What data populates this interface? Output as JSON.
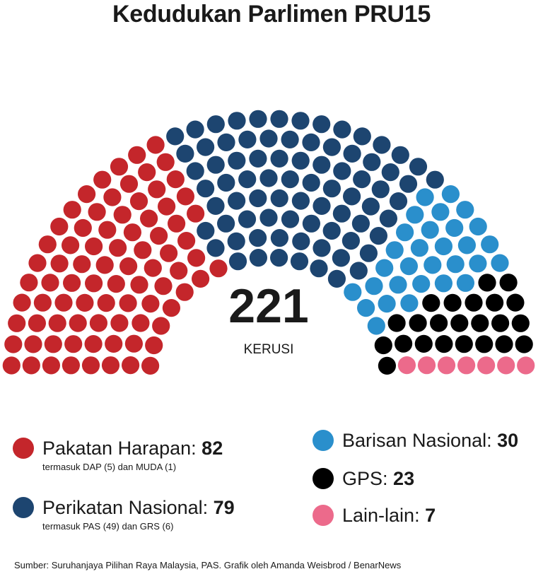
{
  "title": "Kedudukan Parlimen PRU15",
  "chart_data": {
    "type": "parliament",
    "total_seats": 221,
    "total_number": "221",
    "total_label": "KERUSI",
    "parties": [
      {
        "name": "Pakatan Harapan",
        "seats": 82,
        "color": "#c4262b",
        "note": "termasuk DAP (5) dan MUDA (1)"
      },
      {
        "name": "Perikatan Nasional",
        "seats": 79,
        "color": "#1d4570",
        "note": "termasuk PAS (49) dan GRS (6)"
      },
      {
        "name": "Barisan Nasional",
        "seats": 30,
        "color": "#2a8fcc",
        "note": ""
      },
      {
        "name": "GPS",
        "seats": 23,
        "color": "#000000",
        "note": ""
      },
      {
        "name": "Lain-lain",
        "seats": 7,
        "color": "#ec6a8b",
        "note": ""
      }
    ]
  },
  "source": "Sumber: Suruhanjaya Pilihan Raya Malaysia, PAS. Grafik oleh Amanda Weisbrod / BenarNews"
}
